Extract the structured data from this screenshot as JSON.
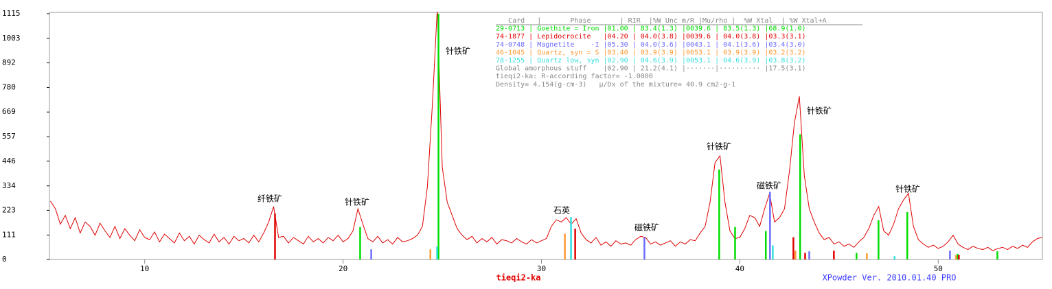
{
  "chart_data": [
    {
      "type": "line",
      "xlabel": "tieqi2-ka",
      "footer": "XPowder Ver. 2010.01.40 PRO",
      "xlim": [
        5.2,
        55.25
      ],
      "ylim": [
        0,
        1115
      ],
      "xticks": [
        10,
        20,
        30,
        40,
        50
      ],
      "yticks": [
        0,
        111,
        223,
        334,
        446,
        557,
        669,
        780,
        892,
        1003,
        1115
      ],
      "grid": false,
      "x": [
        5.25,
        5.5,
        5.75,
        6,
        6.25,
        6.5,
        6.75,
        7,
        7.25,
        7.5,
        7.75,
        8,
        8.25,
        8.5,
        8.75,
        9,
        9.25,
        9.5,
        9.75,
        10,
        10.25,
        10.5,
        10.75,
        11,
        11.25,
        11.5,
        11.75,
        12,
        12.25,
        12.5,
        12.75,
        13,
        13.25,
        13.5,
        13.75,
        14,
        14.25,
        14.5,
        14.75,
        15,
        15.25,
        15.5,
        15.75,
        16,
        16.25,
        16.5,
        16.75,
        17,
        17.25,
        17.5,
        17.75,
        18,
        18.25,
        18.5,
        18.75,
        19,
        19.25,
        19.5,
        19.75,
        20,
        20.25,
        20.5,
        20.75,
        21,
        21.25,
        21.5,
        21.75,
        22,
        22.25,
        22.5,
        22.75,
        23,
        23.25,
        23.5,
        23.75,
        24,
        24.25,
        24.5,
        24.75,
        25,
        25.25,
        25.5,
        25.75,
        26,
        26.25,
        26.5,
        26.75,
        27,
        27.25,
        27.5,
        27.75,
        28,
        28.25,
        28.5,
        28.75,
        29,
        29.25,
        29.5,
        29.75,
        30,
        30.25,
        30.5,
        30.75,
        31,
        31.25,
        31.5,
        31.75,
        32,
        32.25,
        32.5,
        32.75,
        33,
        33.25,
        33.5,
        33.75,
        34,
        34.25,
        34.5,
        34.75,
        35,
        35.25,
        35.5,
        35.75,
        36,
        36.25,
        36.5,
        36.75,
        37,
        37.25,
        37.5,
        37.75,
        38,
        38.25,
        38.5,
        38.75,
        39,
        39.25,
        39.5,
        39.75,
        40,
        40.25,
        40.5,
        40.75,
        41,
        41.25,
        41.5,
        41.75,
        42,
        42.25,
        42.5,
        42.75,
        43,
        43.25,
        43.5,
        43.75,
        44,
        44.25,
        44.5,
        44.75,
        45,
        45.25,
        45.5,
        45.75,
        46,
        46.25,
        46.5,
        46.75,
        47,
        47.25,
        47.5,
        47.75,
        48,
        48.25,
        48.5,
        48.75,
        49,
        49.25,
        49.5,
        49.75,
        50,
        50.25,
        50.5,
        50.75,
        51,
        51.25,
        51.5,
        51.75,
        52,
        52.25,
        52.5,
        52.75,
        53,
        53.25,
        53.5,
        53.75,
        54,
        54.25,
        54.5,
        54.75,
        55,
        55.25
      ],
      "series": [
        {
          "color": "#e00000",
          "values": [
            265,
            230,
            160,
            200,
            140,
            190,
            120,
            170,
            150,
            110,
            165,
            130,
            100,
            150,
            95,
            140,
            110,
            85,
            135,
            100,
            90,
            125,
            80,
            115,
            95,
            75,
            120,
            85,
            105,
            70,
            110,
            90,
            75,
            115,
            80,
            100,
            70,
            105,
            85,
            95,
            75,
            110,
            80,
            120,
            170,
            240,
            100,
            105,
            75,
            100,
            85,
            70,
            105,
            80,
            95,
            75,
            100,
            85,
            110,
            80,
            95,
            130,
            230,
            160,
            95,
            80,
            105,
            75,
            90,
            70,
            100,
            80,
            85,
            95,
            110,
            150,
            330,
            700,
            1140,
            420,
            260,
            200,
            140,
            110,
            90,
            105,
            75,
            95,
            80,
            100,
            70,
            90,
            85,
            75,
            95,
            80,
            70,
            90,
            75,
            85,
            95,
            150,
            180,
            170,
            190,
            160,
            185,
            120,
            90,
            75,
            100,
            65,
            80,
            60,
            85,
            70,
            75,
            65,
            90,
            105,
            100,
            70,
            80,
            65,
            75,
            85,
            60,
            80,
            70,
            90,
            85,
            120,
            150,
            260,
            440,
            470,
            260,
            130,
            95,
            100,
            140,
            200,
            190,
            150,
            230,
            300,
            170,
            190,
            230,
            400,
            620,
            740,
            380,
            230,
            170,
            120,
            90,
            100,
            70,
            80,
            60,
            70,
            55,
            80,
            100,
            140,
            200,
            240,
            130,
            110,
            160,
            230,
            270,
            300,
            150,
            90,
            70,
            55,
            65,
            50,
            60,
            80,
            110,
            70,
            55,
            45,
            60,
            50,
            45,
            55,
            40,
            50,
            55,
            45,
            60,
            50,
            65,
            55,
            80,
            95,
            100
          ]
        }
      ],
      "annotations": [
        "纤铁矿",
        "针铁矿",
        "针铁矿",
        "石英",
        "磁铁矿",
        "针铁矿",
        "磁铁矿",
        "针铁矿",
        "针铁矿"
      ],
      "table": {
        "header": "   Card   |       Phase       | RIR  |%W Unc m/R |Mu/rho |  %W Xtal  | %W Xtal+A",
        "header_color": "#888888",
        "rows": [
          {
            "text": "29-0713 | Goethite = Iron |01.00 | 83.4(1.3) |0039.6 | 83.5(1.3) |68.9(1.0)",
            "color": "#00dd00"
          },
          {
            "text": "74-1877 | Lepidocrocite   |04.20 | 04.0(3.8) |0039.6 | 04.0(3.8) |03.3(3.1)",
            "color": "#e00000"
          },
          {
            "text": "74-0748 | Magnetite    ·I |05.30 | 04.0(3.6) |0043.1 | 04.1(3.6) |03.4(3.0)",
            "color": "#6b6bff"
          },
          {
            "text": "46-1045 | Quartz, syn = S |03.40 | 03.9(3.9) |0053.1 | 03.9(3.9) |03.2(3.2)",
            "color": "#ff9933"
          },
          {
            "text": "78-1255 | Quartz low, syn |02.90 | 04.6(3.9) |0053.1 | 04.6(3.9) |03.8(3.2)",
            "color": "#33dddd"
          },
          {
            "text": "Global amorphous stuff    |02.90 | 21.2(4.1) |·······|·········· |17.5(3.1)",
            "color": "#888888"
          },
          {
            "text": "tieqi2-ka: R-according factor= -1.0000",
            "color": "#888888"
          },
          {
            "text": "Density= 4.154(g·cm-3)   μ/Dx of the mixture= 40.9 cm2·g-1",
            "color": "#888888"
          }
        ]
      }
    },
    {
      "type": "stick",
      "series": [
        {
          "color": "#00dd00",
          "x": [
            20.86,
            24.81,
            38.96,
            39.76,
            41.31,
            43.04,
            45.88,
            46.99,
            48.44,
            50.97,
            52.98
          ],
          "values": [
            147,
            1115,
            408,
            147,
            129,
            568,
            30,
            178,
            215,
            25,
            37
          ]
        },
        {
          "color": "#e00000",
          "x": [
            16.57,
            31.7,
            42.7,
            43.29,
            44.74,
            51.04
          ],
          "values": [
            209,
            140,
            101,
            30,
            40,
            21
          ]
        },
        {
          "color": "#6b6bff",
          "x": [
            21.42,
            35.19,
            41.52,
            43.5,
            50.59
          ],
          "values": [
            46,
            101,
            307,
            37,
            40
          ]
        },
        {
          "color": "#ff9933",
          "x": [
            24.4,
            31.18,
            42.8,
            46.4,
            50.9
          ],
          "values": [
            46,
            117,
            40,
            28,
            20
          ]
        },
        {
          "color": "#33dddd",
          "x": [
            24.74,
            31.49,
            41.66,
            47.8
          ],
          "values": [
            58,
            193,
            64,
            15
          ]
        }
      ]
    }
  ]
}
